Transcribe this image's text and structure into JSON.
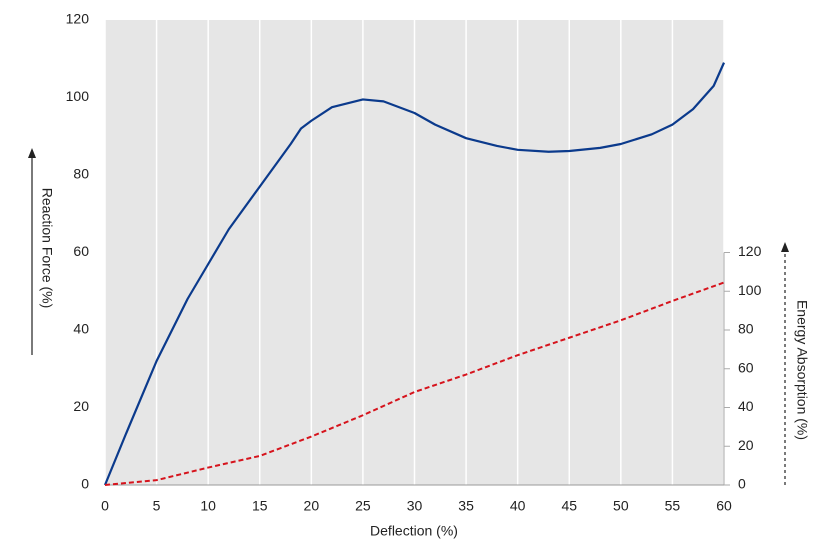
{
  "chart_data": {
    "type": "line",
    "xlabel": "Deflection (%)",
    "ylabel": "Reaction Force (%)",
    "y2label": "Energy Absorption (%)",
    "xlim": [
      0,
      60
    ],
    "xticks": [
      0,
      5,
      10,
      15,
      20,
      25,
      30,
      35,
      40,
      45,
      50,
      55,
      60
    ],
    "ylim": [
      0,
      120
    ],
    "yticks": [
      0,
      20,
      40,
      60,
      80,
      100,
      120
    ],
    "y2lim": [
      0,
      240
    ],
    "y2ticks": [
      0,
      20,
      40,
      60,
      80,
      100,
      120
    ],
    "grid": true,
    "series": [
      {
        "name": "Reaction Force",
        "color": "#0b3a8c",
        "dash": false,
        "x": [
          0,
          2,
          5,
          8,
          10,
          12,
          15,
          18,
          19,
          20,
          22,
          25,
          27,
          30,
          32,
          35,
          38,
          40,
          43,
          45,
          48,
          50,
          53,
          55,
          57,
          59,
          60
        ],
        "values": [
          0,
          13,
          32,
          48,
          57,
          66,
          77,
          88,
          92,
          94,
          97.5,
          99.5,
          99,
          96,
          93,
          89.5,
          87.5,
          86.5,
          86,
          86.2,
          87,
          88,
          90.5,
          93,
          97,
          103,
          109
        ]
      },
      {
        "name": "Energy Absorption",
        "color": "#d6131c",
        "dash": true,
        "axis": "y2",
        "x": [
          0,
          5,
          10,
          15,
          20,
          25,
          30,
          35,
          40,
          45,
          50,
          55,
          60
        ],
        "values": [
          0,
          2.5,
          9,
          15,
          25,
          36,
          48,
          57,
          67,
          76,
          85,
          95,
          104.5
        ]
      }
    ]
  }
}
